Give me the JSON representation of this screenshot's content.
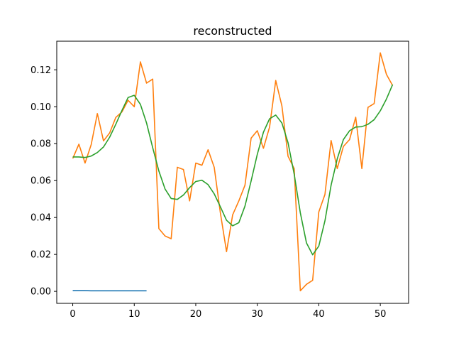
{
  "chart_data": {
    "type": "line",
    "title": "reconstructed",
    "xlabel": "",
    "ylabel": "",
    "xlim": [
      -2.6,
      54.6
    ],
    "ylim": [
      -0.0065,
      0.1355
    ],
    "x_ticks": [
      0,
      10,
      20,
      30,
      40,
      50
    ],
    "y_ticks": [
      0.0,
      0.02,
      0.04,
      0.06,
      0.08,
      0.1,
      0.12
    ],
    "y_tick_labels": [
      "0.00",
      "0.02",
      "0.04",
      "0.06",
      "0.08",
      "0.10",
      "0.12"
    ],
    "grid": false,
    "series": [
      {
        "color": "#1f77b4",
        "x": [
          0,
          1,
          2,
          3,
          4,
          5,
          6,
          7,
          8,
          9,
          10,
          11,
          12
        ],
        "values": [
          0.0004,
          0.0004,
          0.0004,
          0.0003,
          0.0003,
          0.0003,
          0.0003,
          0.0003,
          0.0003,
          0.0003,
          0.0003,
          0.0003,
          0.0003
        ]
      },
      {
        "color": "#ff7f0e",
        "x": [
          0,
          1,
          2,
          3,
          4,
          5,
          6,
          7,
          8,
          9,
          10,
          11,
          12,
          13,
          14,
          15,
          16,
          17,
          18,
          19,
          20,
          21,
          22,
          23,
          24,
          25,
          26,
          27,
          28,
          29,
          30,
          31,
          32,
          33,
          34,
          35,
          36,
          37,
          38,
          39,
          40,
          41,
          42,
          43,
          44,
          45,
          46,
          47,
          48,
          49,
          50,
          51,
          52
        ],
        "values": [
          0.072,
          0.0797,
          0.0695,
          0.0795,
          0.0963,
          0.0815,
          0.0858,
          0.0942,
          0.0972,
          0.1035,
          0.1,
          0.1243,
          0.1128,
          0.115,
          0.034,
          0.03,
          0.0285,
          0.0672,
          0.066,
          0.049,
          0.0695,
          0.0683,
          0.0767,
          0.0672,
          0.0425,
          0.0215,
          0.0415,
          0.049,
          0.0575,
          0.083,
          0.087,
          0.0775,
          0.089,
          0.1142,
          0.1005,
          0.0732,
          0.0665,
          0.0003,
          0.0038,
          0.006,
          0.043,
          0.0525,
          0.0817,
          0.0665,
          0.0785,
          0.0822,
          0.0943,
          0.0665,
          0.0997,
          0.1017,
          0.1292,
          0.1175,
          0.1115
        ]
      },
      {
        "color": "#2ca02c",
        "x": [
          0,
          1,
          2,
          3,
          4,
          5,
          6,
          7,
          8,
          9,
          10,
          11,
          12,
          13,
          14,
          15,
          16,
          17,
          18,
          19,
          20,
          21,
          22,
          23,
          24,
          25,
          26,
          27,
          28,
          29,
          30,
          31,
          32,
          33,
          34,
          35,
          36,
          37,
          38,
          39,
          40,
          41,
          42,
          43,
          44,
          45,
          46,
          47,
          48,
          49,
          50,
          51,
          52
        ],
        "values": [
          0.0728,
          0.0728,
          0.0725,
          0.0733,
          0.0752,
          0.0782,
          0.0835,
          0.0905,
          0.098,
          0.105,
          0.1062,
          0.1013,
          0.0912,
          0.0778,
          0.0652,
          0.0555,
          0.0503,
          0.0498,
          0.0522,
          0.0562,
          0.0595,
          0.0602,
          0.0578,
          0.0528,
          0.0458,
          0.0385,
          0.0355,
          0.0372,
          0.0462,
          0.0598,
          0.0742,
          0.0862,
          0.0935,
          0.0955,
          0.0912,
          0.0805,
          0.0635,
          0.0425,
          0.0262,
          0.0198,
          0.0245,
          0.0382,
          0.0575,
          0.0718,
          0.0822,
          0.087,
          0.089,
          0.0892,
          0.0905,
          0.093,
          0.0978,
          0.1042,
          0.112
        ]
      }
    ]
  }
}
